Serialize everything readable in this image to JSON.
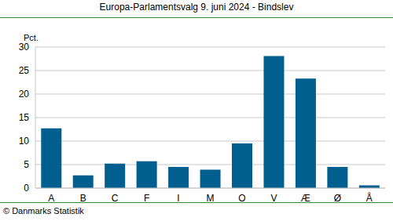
{
  "chart_data": {
    "type": "bar",
    "title": "Europa-Parlamentsvalg 9. juni 2024 - Bindslev",
    "ylabel": "Pct.",
    "annotation": "© Danmarks Statistik",
    "categories": [
      "A",
      "B",
      "C",
      "F",
      "I",
      "M",
      "O",
      "V",
      "Æ",
      "Ø",
      "Å"
    ],
    "values": [
      12.7,
      2.7,
      5.2,
      5.7,
      4.5,
      3.9,
      9.5,
      28.1,
      23.3,
      4.5,
      0.6
    ],
    "color": "#005f8f",
    "ylim": [
      0,
      30
    ],
    "yticks": [
      0,
      5,
      10,
      15,
      20,
      25,
      30
    ],
    "grid": true
  }
}
